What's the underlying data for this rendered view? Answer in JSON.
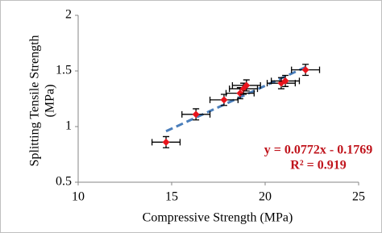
{
  "chart_data": {
    "type": "scatter",
    "x_label": "Compressive Strength (MPa)",
    "y_label": [
      "Splitting Tensile Strength",
      "(MPa)"
    ],
    "x": [
      14.7,
      16.3,
      17.8,
      18.66,
      18.84,
      19.0,
      20.86,
      21.08,
      22.16
    ],
    "x_errors": [
      0.75,
      0.75,
      0.75,
      0.75,
      0.75,
      0.75,
      0.75,
      0.75,
      0.75
    ],
    "series": [
      {
        "color": "#e8141c",
        "values": [
          0.86,
          1.11,
          1.24,
          1.3,
          1.34,
          1.37,
          1.39,
          1.41,
          1.51
        ],
        "errors": [
          0.05,
          0.05,
          0.05,
          0.05,
          0.05,
          0.05,
          0.05,
          0.05,
          0.05
        ]
      }
    ],
    "trendline": {
      "color": "#4a7ebb",
      "x": [
        14.7,
        22.2
      ],
      "values": [
        0.958,
        1.537
      ]
    },
    "annotations": [
      "y = 0.0772x - 0.1769",
      "R² = 0.919"
    ],
    "annotation_color": "#c0141c",
    "xlim": [
      10,
      25
    ],
    "xticks": [
      10,
      15,
      20,
      25
    ],
    "ylim": [
      0.5,
      2
    ],
    "yticks": [
      0.5,
      1,
      1.5,
      2
    ],
    "grid": false
  }
}
